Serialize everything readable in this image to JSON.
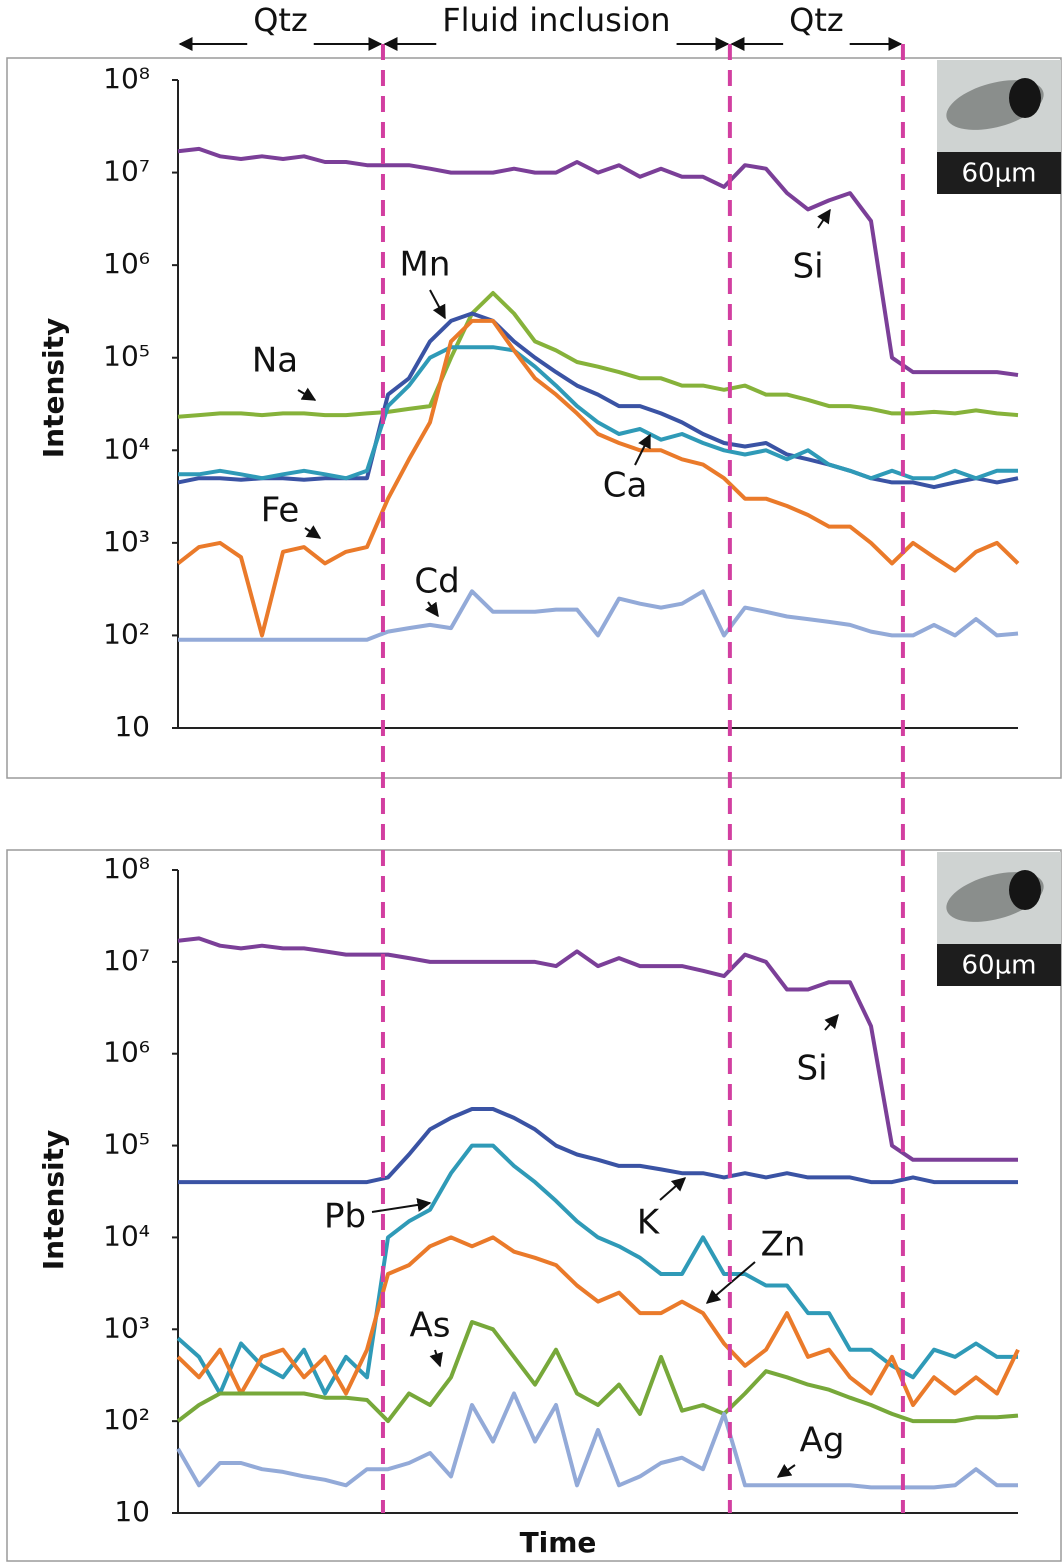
{
  "chart_data": [
    {
      "type": "line",
      "y_label": "Intensity",
      "log_scale": true,
      "scale_label": "60µm",
      "regions": [
        {
          "label": "Qtz",
          "from": 0,
          "to": 24.4
        },
        {
          "label": "Fluid inclusion",
          "from": 24.4,
          "to": 65.7
        },
        {
          "label": "Qtz",
          "from": 65.7,
          "to": 86.3
        }
      ],
      "xlim": [
        0,
        100
      ],
      "ylim": [
        10,
        100000000
      ],
      "yticks": [
        {
          "value": 100000000,
          "label": "10⁸"
        },
        {
          "value": 10000000,
          "label": "10⁷"
        },
        {
          "value": 1000000,
          "label": "10⁶"
        },
        {
          "value": 100000,
          "label": "10⁵"
        },
        {
          "value": 10000,
          "label": "10⁴"
        },
        {
          "value": 1000,
          "label": "10³"
        },
        {
          "value": 100,
          "label": "10²"
        },
        10
      ],
      "x": [
        0,
        2.5,
        5,
        7.5,
        10,
        12.5,
        15,
        17.5,
        20,
        22.5,
        25,
        27.5,
        30,
        32.5,
        35,
        37.5,
        40,
        42.5,
        45,
        47.5,
        50,
        52.5,
        55,
        57.5,
        60,
        62.5,
        65,
        67.5,
        70,
        72.5,
        75,
        77.5,
        80,
        82.5,
        85,
        87.5,
        90,
        92.5,
        95,
        97.5,
        100
      ],
      "series": [
        {
          "name": "Si",
          "color": "#7b3f98",
          "values": [
            17000000,
            18000000,
            15000000,
            14000000,
            15000000,
            14000000,
            15000000,
            13000000,
            13000000,
            12000000,
            12000000,
            12000000,
            11000000,
            10000000,
            10000000,
            10000000,
            11000000,
            10000000,
            10000000,
            13000000,
            10000000,
            12000000,
            9000000,
            11000000,
            9000000,
            9000000,
            7000000,
            12000000,
            11000000,
            6000000,
            4000000,
            5000000,
            6000000,
            3000000,
            100000,
            70000,
            70000,
            70000,
            70000,
            70000,
            65000
          ]
        },
        {
          "name": "Na",
          "color": "#86b23a",
          "values": [
            23000,
            24000,
            25000,
            25000,
            24000,
            25000,
            25000,
            24000,
            24000,
            25000,
            26000,
            28000,
            30000,
            100000,
            300000,
            500000,
            300000,
            150000,
            120000,
            90000,
            80000,
            70000,
            60000,
            60000,
            50000,
            50000,
            45000,
            50000,
            40000,
            40000,
            35000,
            30000,
            30000,
            28000,
            25000,
            25000,
            26000,
            25000,
            27000,
            25000,
            24000
          ]
        },
        {
          "name": "Mn",
          "color": "#3a53a4",
          "values": [
            4500,
            5000,
            5000,
            4800,
            5000,
            5000,
            4800,
            5000,
            5000,
            5000,
            40000,
            60000,
            150000,
            250000,
            300000,
            250000,
            150000,
            100000,
            70000,
            50000,
            40000,
            30000,
            30000,
            25000,
            20000,
            15000,
            12000,
            11000,
            12000,
            9000,
            8000,
            7000,
            6000,
            5000,
            4500,
            4500,
            4000,
            4500,
            5000,
            4500,
            5000
          ]
        },
        {
          "name": "Ca",
          "color": "#2f9ab7",
          "values": [
            5500,
            5500,
            6000,
            5500,
            5000,
            5500,
            6000,
            5500,
            5000,
            6000,
            30000,
            50000,
            100000,
            130000,
            130000,
            130000,
            120000,
            80000,
            50000,
            30000,
            20000,
            15000,
            17000,
            13000,
            15000,
            12000,
            10000,
            9000,
            10000,
            8000,
            10000,
            7000,
            6000,
            5000,
            6000,
            5000,
            5000,
            6000,
            5000,
            6000,
            6000
          ]
        },
        {
          "name": "Fe",
          "color": "#ea7a2a",
          "values": [
            600,
            900,
            1000,
            700,
            100,
            800,
            900,
            600,
            800,
            900,
            3000,
            8000,
            20000,
            150000,
            250000,
            250000,
            120000,
            60000,
            40000,
            25000,
            15000,
            12000,
            10000,
            10000,
            8000,
            7000,
            5000,
            3000,
            3000,
            2500,
            2000,
            1500,
            1500,
            1000,
            600,
            1000,
            700,
            500,
            800,
            1000,
            600
          ]
        },
        {
          "name": "Cd",
          "color": "#93aad8",
          "values": [
            90,
            90,
            90,
            90,
            90,
            90,
            90,
            90,
            90,
            90,
            110,
            120,
            130,
            120,
            300,
            180,
            180,
            180,
            190,
            190,
            100,
            250,
            220,
            200,
            220,
            300,
            100,
            200,
            180,
            160,
            150,
            140,
            130,
            110,
            100,
            100,
            130,
            100,
            150,
            100,
            105
          ]
        }
      ]
    },
    {
      "type": "line",
      "y_label": "Intensity",
      "x_label": "Time",
      "log_scale": true,
      "scale_label": "60µm",
      "xlim": [
        0,
        100
      ],
      "ylim": [
        10,
        100000000
      ],
      "yticks": [
        {
          "value": 100000000,
          "label": "10⁸"
        },
        {
          "value": 10000000,
          "label": "10⁷"
        },
        {
          "value": 1000000,
          "label": "10⁶"
        },
        {
          "value": 100000,
          "label": "10⁵"
        },
        {
          "value": 10000,
          "label": "10⁴"
        },
        {
          "value": 1000,
          "label": "10³"
        },
        {
          "value": 100,
          "label": "10²"
        },
        10
      ],
      "x": [
        0,
        2.5,
        5,
        7.5,
        10,
        12.5,
        15,
        17.5,
        20,
        22.5,
        25,
        27.5,
        30,
        32.5,
        35,
        37.5,
        40,
        42.5,
        45,
        47.5,
        50,
        52.5,
        55,
        57.5,
        60,
        62.5,
        65,
        67.5,
        70,
        72.5,
        75,
        77.5,
        80,
        82.5,
        85,
        87.5,
        90,
        92.5,
        95,
        97.5,
        100
      ],
      "series": [
        {
          "name": "Si",
          "color": "#7b3f98",
          "values": [
            17000000,
            18000000,
            15000000,
            14000000,
            15000000,
            14000000,
            14000000,
            13000000,
            12000000,
            12000000,
            12000000,
            11000000,
            10000000,
            10000000,
            10000000,
            10000000,
            10000000,
            10000000,
            9000000,
            13000000,
            9000000,
            11000000,
            9000000,
            9000000,
            9000000,
            8000000,
            7000000,
            12000000,
            10000000,
            5000000,
            5000000,
            6000000,
            6000000,
            2000000,
            100000,
            70000,
            70000,
            70000,
            70000,
            70000,
            70000
          ]
        },
        {
          "name": "K",
          "color": "#3a53a4",
          "values": [
            40000,
            40000,
            40000,
            40000,
            40000,
            40000,
            40000,
            40000,
            40000,
            40000,
            45000,
            80000,
            150000,
            200000,
            250000,
            250000,
            200000,
            150000,
            100000,
            80000,
            70000,
            60000,
            60000,
            55000,
            50000,
            50000,
            45000,
            50000,
            45000,
            50000,
            45000,
            45000,
            45000,
            40000,
            40000,
            45000,
            40000,
            40000,
            40000,
            40000,
            40000
          ]
        },
        {
          "name": "Pb",
          "color": "#2f9ab7",
          "values": [
            800,
            500,
            200,
            700,
            400,
            300,
            600,
            200,
            500,
            300,
            10000,
            15000,
            20000,
            50000,
            100000,
            100000,
            60000,
            40000,
            25000,
            15000,
            10000,
            8000,
            6000,
            4000,
            4000,
            10000,
            4000,
            4000,
            3000,
            3000,
            1500,
            1500,
            600,
            600,
            400,
            300,
            600,
            500,
            700,
            500,
            500
          ]
        },
        {
          "name": "Zn",
          "color": "#ea7a2a",
          "values": [
            500,
            300,
            600,
            200,
            500,
            600,
            300,
            500,
            200,
            600,
            4000,
            5000,
            8000,
            10000,
            8000,
            10000,
            7000,
            6000,
            5000,
            3000,
            2000,
            2500,
            1500,
            1500,
            2000,
            1500,
            700,
            400,
            600,
            1500,
            500,
            600,
            300,
            200,
            500,
            150,
            300,
            200,
            300,
            200,
            600
          ]
        },
        {
          "name": "As",
          "color": "#77a83a",
          "values": [
            100,
            150,
            200,
            200,
            200,
            200,
            200,
            180,
            180,
            170,
            100,
            200,
            150,
            300,
            1200,
            1000,
            500,
            250,
            600,
            200,
            150,
            250,
            120,
            500,
            130,
            150,
            120,
            200,
            350,
            300,
            250,
            220,
            180,
            150,
            120,
            100,
            100,
            100,
            110,
            110,
            115
          ]
        },
        {
          "name": "Ag",
          "color": "#93aad8",
          "values": [
            50,
            20,
            35,
            35,
            30,
            28,
            25,
            23,
            20,
            30,
            30,
            35,
            45,
            25,
            150,
            60,
            200,
            60,
            150,
            20,
            80,
            20,
            25,
            35,
            40,
            30,
            120,
            20,
            20,
            20,
            20,
            20,
            20,
            19,
            19,
            19,
            19,
            20,
            30,
            20,
            20
          ]
        }
      ]
    }
  ]
}
